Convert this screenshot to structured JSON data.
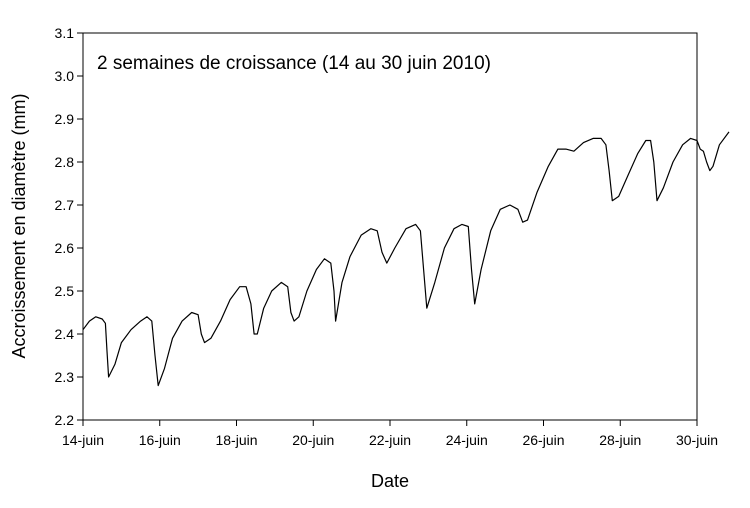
{
  "chart_data": {
    "type": "line",
    "annotation": "2 semaines de croissance (14 au 30 juin 2010)",
    "xlabel": "Date",
    "ylabel": "Accroissement en diamètre (mm)",
    "xlim": [
      "2010-06-14",
      "2010-06-30"
    ],
    "ylim": [
      2.2,
      3.1
    ],
    "x_ticks": [
      "14-juin",
      "16-juin",
      "18-juin",
      "20-juin",
      "22-juin",
      "24-juin",
      "26-juin",
      "28-juin",
      "30-juin"
    ],
    "y_ticks": [
      "2.2",
      "2.3",
      "2.4",
      "2.5",
      "2.6",
      "2.7",
      "2.8",
      "2.9",
      "3.0",
      "3.1"
    ],
    "grid": false,
    "series": [
      {
        "color": "#000000",
        "points": [
          [
            "2010-06-14T00:00",
            2.41
          ],
          [
            "2010-06-14T04:00",
            2.43
          ],
          [
            "2010-06-14T08:00",
            2.44
          ],
          [
            "2010-06-14T12:00",
            2.435
          ],
          [
            "2010-06-14T14:00",
            2.425
          ],
          [
            "2010-06-14T15:00",
            2.36
          ],
          [
            "2010-06-14T16:00",
            2.3
          ],
          [
            "2010-06-14T20:00",
            2.33
          ],
          [
            "2010-06-15T00:00",
            2.38
          ],
          [
            "2010-06-15T06:00",
            2.41
          ],
          [
            "2010-06-15T12:00",
            2.43
          ],
          [
            "2010-06-15T16:00",
            2.44
          ],
          [
            "2010-06-15T19:00",
            2.43
          ],
          [
            "2010-06-15T21:00",
            2.35
          ],
          [
            "2010-06-15T23:00",
            2.28
          ],
          [
            "2010-06-16T03:00",
            2.32
          ],
          [
            "2010-06-16T08:00",
            2.39
          ],
          [
            "2010-06-16T14:00",
            2.43
          ],
          [
            "2010-06-16T20:00",
            2.45
          ],
          [
            "2010-06-17T00:00",
            2.445
          ],
          [
            "2010-06-17T02:00",
            2.4
          ],
          [
            "2010-06-17T04:00",
            2.38
          ],
          [
            "2010-06-17T08:00",
            2.39
          ],
          [
            "2010-06-17T14:00",
            2.43
          ],
          [
            "2010-06-17T20:00",
            2.48
          ],
          [
            "2010-06-18T02:00",
            2.51
          ],
          [
            "2010-06-18T06:00",
            2.51
          ],
          [
            "2010-06-18T09:00",
            2.47
          ],
          [
            "2010-06-18T11:00",
            2.4
          ],
          [
            "2010-06-18T13:00",
            2.4
          ],
          [
            "2010-06-18T17:00",
            2.46
          ],
          [
            "2010-06-18T22:00",
            2.5
          ],
          [
            "2010-06-19T04:00",
            2.52
          ],
          [
            "2010-06-19T08:00",
            2.51
          ],
          [
            "2010-06-19T10:00",
            2.45
          ],
          [
            "2010-06-19T12:00",
            2.43
          ],
          [
            "2010-06-19T15:00",
            2.44
          ],
          [
            "2010-06-19T20:00",
            2.5
          ],
          [
            "2010-06-20T02:00",
            2.55
          ],
          [
            "2010-06-20T07:00",
            2.575
          ],
          [
            "2010-06-20T11:00",
            2.565
          ],
          [
            "2010-06-20T13:00",
            2.5
          ],
          [
            "2010-06-20T14:00",
            2.43
          ],
          [
            "2010-06-20T18:00",
            2.52
          ],
          [
            "2010-06-20T23:00",
            2.58
          ],
          [
            "2010-06-21T06:00",
            2.63
          ],
          [
            "2010-06-21T12:00",
            2.645
          ],
          [
            "2010-06-21T16:00",
            2.64
          ],
          [
            "2010-06-21T19:00",
            2.59
          ],
          [
            "2010-06-21T22:00",
            2.565
          ],
          [
            "2010-06-22T03:00",
            2.6
          ],
          [
            "2010-06-22T10:00",
            2.645
          ],
          [
            "2010-06-22T16:00",
            2.655
          ],
          [
            "2010-06-22T19:00",
            2.64
          ],
          [
            "2010-06-22T21:00",
            2.55
          ],
          [
            "2010-06-22T23:00",
            2.46
          ],
          [
            "2010-06-23T04:00",
            2.52
          ],
          [
            "2010-06-23T10:00",
            2.6
          ],
          [
            "2010-06-23T16:00",
            2.645
          ],
          [
            "2010-06-23T21:00",
            2.655
          ],
          [
            "2010-06-24T01:00",
            2.65
          ],
          [
            "2010-06-24T03:00",
            2.55
          ],
          [
            "2010-06-24T05:00",
            2.47
          ],
          [
            "2010-06-24T09:00",
            2.55
          ],
          [
            "2010-06-24T15:00",
            2.64
          ],
          [
            "2010-06-24T21:00",
            2.69
          ],
          [
            "2010-06-25T03:00",
            2.7
          ],
          [
            "2010-06-25T08:00",
            2.69
          ],
          [
            "2010-06-25T11:00",
            2.66
          ],
          [
            "2010-06-25T14:00",
            2.665
          ],
          [
            "2010-06-25T20:00",
            2.73
          ],
          [
            "2010-06-26T03:00",
            2.79
          ],
          [
            "2010-06-26T09:00",
            2.83
          ],
          [
            "2010-06-26T14:00",
            2.83
          ],
          [
            "2010-06-26T19:00",
            2.825
          ],
          [
            "2010-06-27T01:00",
            2.845
          ],
          [
            "2010-06-27T07:00",
            2.855
          ],
          [
            "2010-06-27T12:00",
            2.855
          ],
          [
            "2010-06-27T15:00",
            2.84
          ],
          [
            "2010-06-27T17:00",
            2.78
          ],
          [
            "2010-06-27T19:00",
            2.71
          ],
          [
            "2010-06-27T23:00",
            2.72
          ],
          [
            "2010-06-28T05:00",
            2.77
          ],
          [
            "2010-06-28T11:00",
            2.82
          ],
          [
            "2010-06-28T16:00",
            2.85
          ],
          [
            "2010-06-28T19:00",
            2.85
          ],
          [
            "2010-06-28T21:00",
            2.8
          ],
          [
            "2010-06-28T23:00",
            2.71
          ],
          [
            "2010-06-29T03:00",
            2.74
          ],
          [
            "2010-06-29T09:00",
            2.8
          ],
          [
            "2010-06-29T15:00",
            2.84
          ],
          [
            "2010-06-29T20:00",
            2.855
          ],
          [
            "2010-06-30T00:00",
            2.85
          ],
          [
            "2010-06-30T02:00",
            2.83
          ],
          [
            "2010-06-30T04:00",
            2.825
          ],
          [
            "2010-06-30T06:00",
            2.8
          ],
          [
            "2010-06-30T08:00",
            2.78
          ],
          [
            "2010-06-30T10:00",
            2.79
          ],
          [
            "2010-06-30T14:00",
            2.84
          ],
          [
            "2010-06-30T20:00",
            2.87
          ]
        ]
      }
    ]
  }
}
